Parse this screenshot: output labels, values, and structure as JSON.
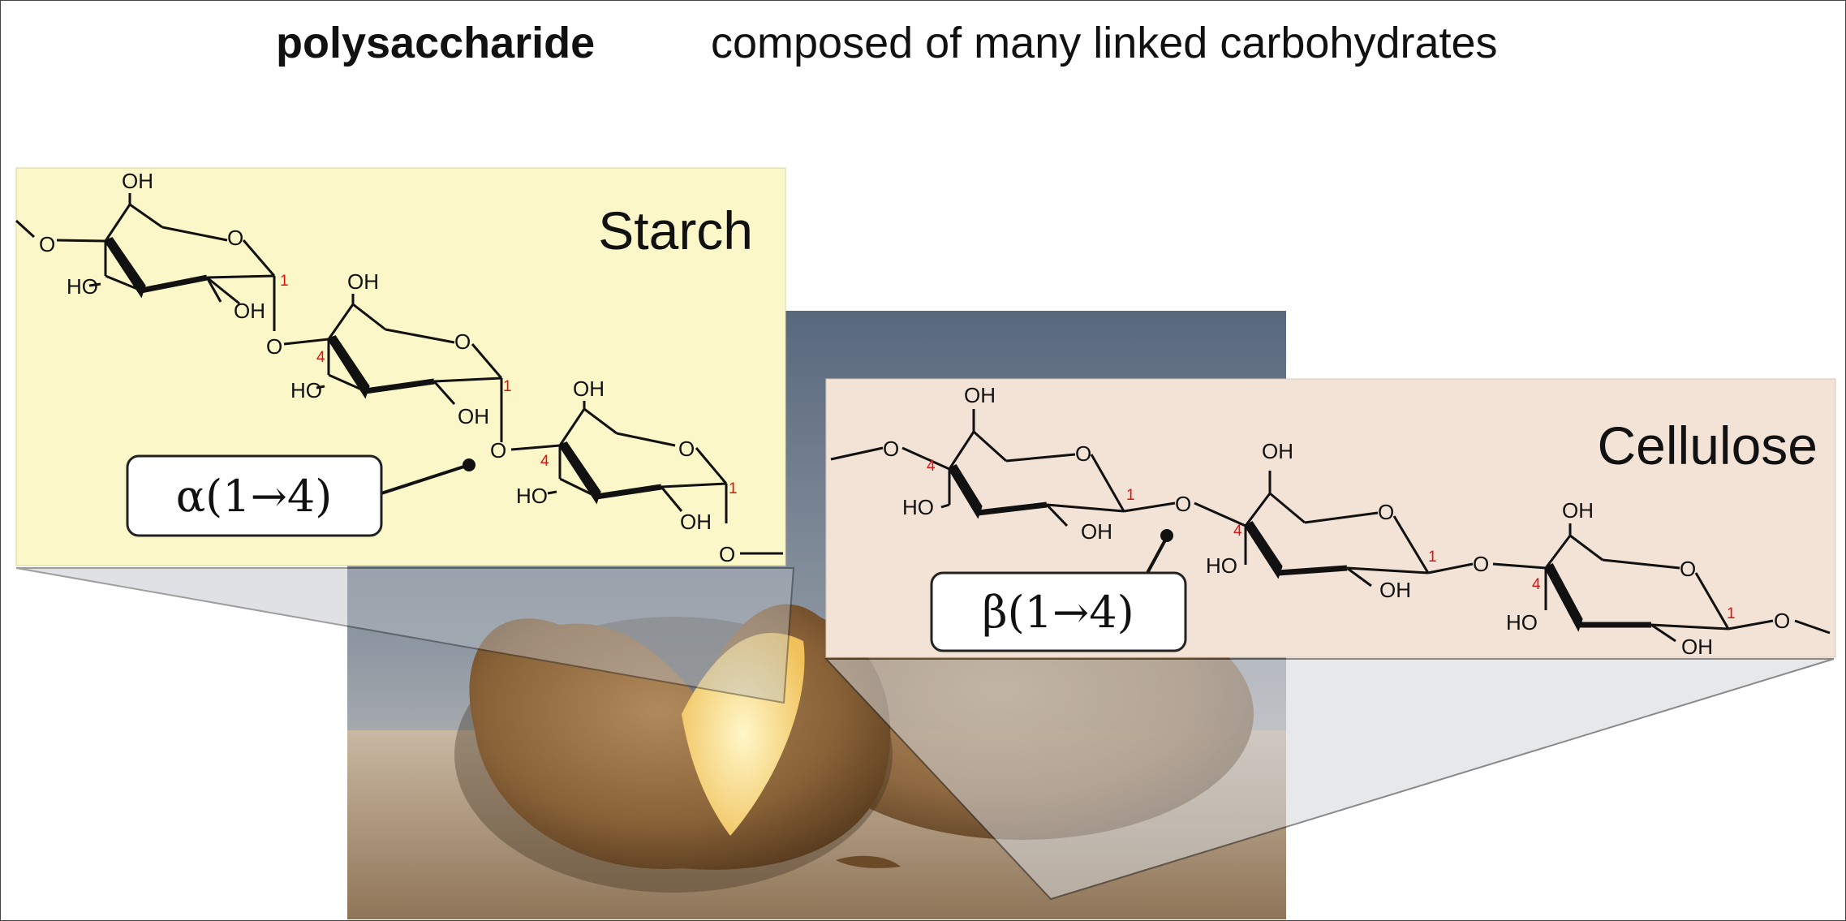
{
  "heading": {
    "term": "polysaccharide",
    "definition": "composed of many linked carbohydrates"
  },
  "starch": {
    "title": "Starch",
    "linkage": "α(1→4)",
    "units": [
      {
        "hydroxymethyl": "OH",
        "ring_o": "O",
        "left": "HO",
        "bottom": "OH",
        "c1": "1",
        "c4": "4",
        "in_o": "O",
        "out_o": "O"
      }
    ]
  },
  "cellulose": {
    "title": "Cellulose",
    "linkage": "β(1→4)",
    "units": [
      {
        "hydroxymethyl": "OH",
        "ring_o": "O",
        "left": "HO",
        "bottom": "OH",
        "c1": "1",
        "c4": "4",
        "in_o": "O",
        "out_o": "O"
      }
    ]
  },
  "colors": {
    "starch_panel": "#fbf7c8",
    "cellulose_panel": "#f3e3d6",
    "photo_backdrop": "#5b6b80",
    "locant": "#e01010"
  }
}
